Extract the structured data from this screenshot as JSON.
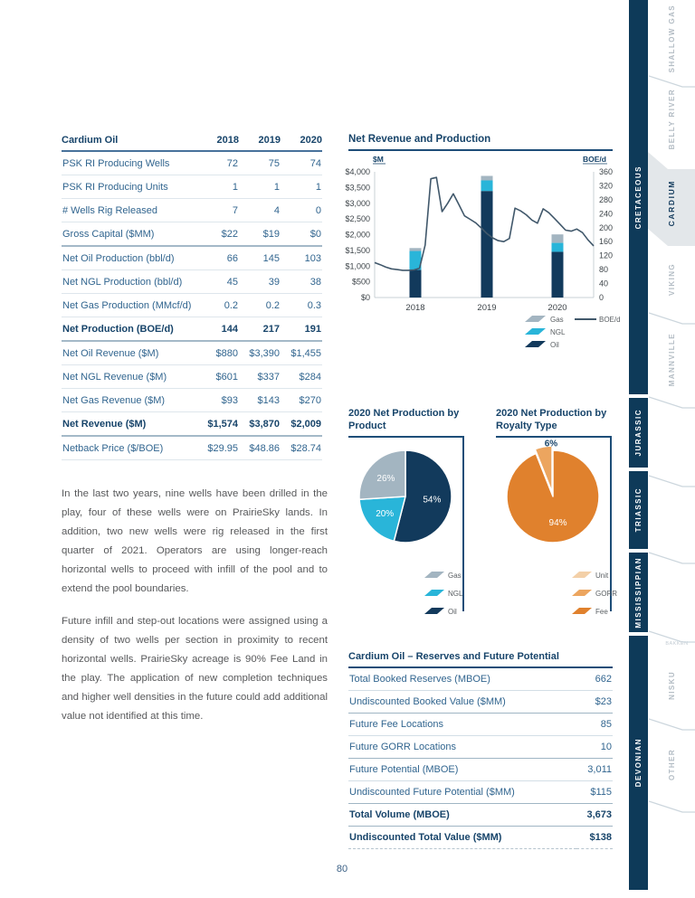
{
  "page": {
    "number": "80"
  },
  "colors": {
    "navy": "#123a5c",
    "title_navy": "#17446a",
    "body_blue": "#31658f",
    "oil": "#123a5c",
    "ngl": "#29b5d9",
    "gas": "#a3b5c1",
    "boed_line": "#41586b",
    "fee": "#e0812d",
    "gorr": "#eca55f",
    "unit": "#f3d0a8",
    "sidebar_navy": "#0e3a59",
    "tab_active_bg": "#e3e7ea"
  },
  "stats_table": {
    "title": "Cardium Oil",
    "years": [
      "2018",
      "2019",
      "2020"
    ],
    "rows": [
      {
        "label": "PSK RI Producing Wells",
        "values": [
          "72",
          "75",
          "74"
        ]
      },
      {
        "label": "PSK RI Producing Units",
        "values": [
          "1",
          "1",
          "1"
        ]
      },
      {
        "label": "# Wells Rig Released",
        "values": [
          "7",
          "4",
          "0"
        ]
      },
      {
        "label": "Gross Capital ($MM)",
        "values": [
          "$22",
          "$19",
          "$0"
        ],
        "group_end": true
      },
      {
        "label": "Net Oil Production (bbl/d)",
        "values": [
          "66",
          "145",
          "103"
        ]
      },
      {
        "label": "Net NGL Production (bbl/d)",
        "values": [
          "45",
          "39",
          "38"
        ]
      },
      {
        "label": "Net Gas Production (MMcf/d)",
        "values": [
          "0.2",
          "0.2",
          "0.3"
        ]
      },
      {
        "label": "Net Production (BOE/d)",
        "values": [
          "144",
          "217",
          "191"
        ],
        "bold": true,
        "group_end": true
      },
      {
        "label": "Net Oil Revenue ($M)",
        "values": [
          "$880",
          "$3,390",
          "$1,455"
        ]
      },
      {
        "label": "Net NGL Revenue ($M)",
        "values": [
          "$601",
          "$337",
          "$284"
        ]
      },
      {
        "label": "Net Gas Revenue ($M)",
        "values": [
          "$93",
          "$143",
          "$270"
        ]
      },
      {
        "label": "Net Revenue ($M)",
        "values": [
          "$1,574",
          "$3,870",
          "$2,009"
        ],
        "bold": true,
        "group_end": true
      },
      {
        "label": "Netback Price ($/BOE)",
        "values": [
          "$29.95",
          "$48.86",
          "$28.74"
        ]
      }
    ]
  },
  "paragraphs": [
    "In the last two years, nine wells have been drilled in the play, four of these wells were on PrairieSky lands. In addition, two new wells were rig released in the first quarter of 2021. Operators are using longer-reach horizontal wells to proceed with infill of the pool and to extend the pool boundaries.",
    "Future infill and step-out locations were assigned using a density of two wells per section in proximity to recent horizontal wells. PrairieSky acreage is 90% Fee Land in the play. The application of new completion techniques and higher well densities in the future could add additional value not identified at this time."
  ],
  "chart_data": [
    {
      "type": "bar",
      "title": "Net Revenue and Production",
      "categories": [
        "2018",
        "2019",
        "2020"
      ],
      "series": [
        {
          "name": "Oil",
          "kind": "bar",
          "color": "#123a5c",
          "values": [
            880,
            3390,
            1455
          ]
        },
        {
          "name": "NGL",
          "kind": "bar",
          "color": "#29b5d9",
          "values": [
            601,
            337,
            284
          ]
        },
        {
          "name": "Gas",
          "kind": "bar",
          "color": "#a3b5c1",
          "values": [
            93,
            143,
            270
          ]
        }
      ],
      "line_series": {
        "name": "BOE/d",
        "color": "#41586b",
        "values": [
          100,
          94,
          87,
          82,
          80,
          78,
          78,
          79,
          84,
          150,
          340,
          344,
          246,
          270,
          297,
          266,
          234,
          224,
          214,
          199,
          183,
          171,
          163,
          160,
          169,
          256,
          248,
          237,
          222,
          213,
          254,
          243,
          227,
          210,
          193,
          190,
          196,
          186,
          165,
          148
        ]
      },
      "left_axis": {
        "label": "$M",
        "min": 0,
        "max": 4000,
        "step": 500
      },
      "right_axis": {
        "label": "BOE/d",
        "min": 0,
        "max": 360,
        "step": 40
      },
      "legend_bars": [
        "Gas",
        "NGL",
        "Oil"
      ],
      "legend_line": "BOE/d"
    },
    {
      "type": "pie",
      "title": "2020 Net Production by Product",
      "slices": [
        {
          "label": "Oil",
          "pct": 54,
          "color": "#123a5c"
        },
        {
          "label": "NGL",
          "pct": 20,
          "color": "#29b5d9"
        },
        {
          "label": "Gas",
          "pct": 26,
          "color": "#a3b5c1"
        }
      ],
      "legend": [
        {
          "label": "Gas",
          "color": "#a3b5c1"
        },
        {
          "label": "NGL",
          "color": "#29b5d9"
        },
        {
          "label": "Oil",
          "color": "#123a5c"
        }
      ]
    },
    {
      "type": "pie",
      "title": "2020 Net Production by Royalty Type",
      "slices": [
        {
          "label": "Fee",
          "pct": 94,
          "color": "#e0812d"
        },
        {
          "label": "GORR",
          "pct": 6,
          "color": "#eca55f",
          "exploded": true,
          "label_outside": true
        }
      ],
      "legend": [
        {
          "label": "Unit",
          "color": "#f3d0a8"
        },
        {
          "label": "GORR",
          "color": "#eca55f"
        },
        {
          "label": "Fee",
          "color": "#e0812d"
        }
      ]
    }
  ],
  "reserves_table": {
    "title": "Cardium Oil – Reserves and Future Potential",
    "rows": [
      {
        "label": "Total Booked Reserves (MBOE)",
        "value": "662"
      },
      {
        "label": "Undiscounted Booked Value ($MM)",
        "value": "$23",
        "group_end": true
      },
      {
        "label": "Future Fee Locations",
        "value": "85"
      },
      {
        "label": "Future GORR Locations",
        "value": "10",
        "group_end": true
      },
      {
        "label": "Future Potential (MBOE)",
        "value": "3,011"
      },
      {
        "label": "Undiscounted Future Potential ($MM)",
        "value": "$115",
        "group_end": true
      },
      {
        "label": "Total Volume (MBOE)",
        "value": "3,673",
        "bold": true,
        "group_end": true
      },
      {
        "label": "Undiscounted Total Value ($MM)",
        "value": "$138",
        "bold": true,
        "last": true
      }
    ]
  },
  "sidebar": {
    "periods": [
      {
        "label": "CRETACEOUS"
      },
      {
        "label": "JURASSIC"
      },
      {
        "label": "TRIASSIC"
      },
      {
        "label": "MISSISSIPPIAN"
      },
      {
        "label": "DEVONIAN"
      }
    ],
    "formations": [
      {
        "label": "SHALLOW GAS"
      },
      {
        "label": "BELLY RIVER"
      },
      {
        "label": "CARDIUM",
        "active": true
      },
      {
        "label": "VIKING"
      },
      {
        "label": "MANNVILLE"
      },
      {
        "label": "BAKKEN",
        "small": true
      },
      {
        "label": "NISKU"
      },
      {
        "label": "OTHER"
      }
    ]
  }
}
